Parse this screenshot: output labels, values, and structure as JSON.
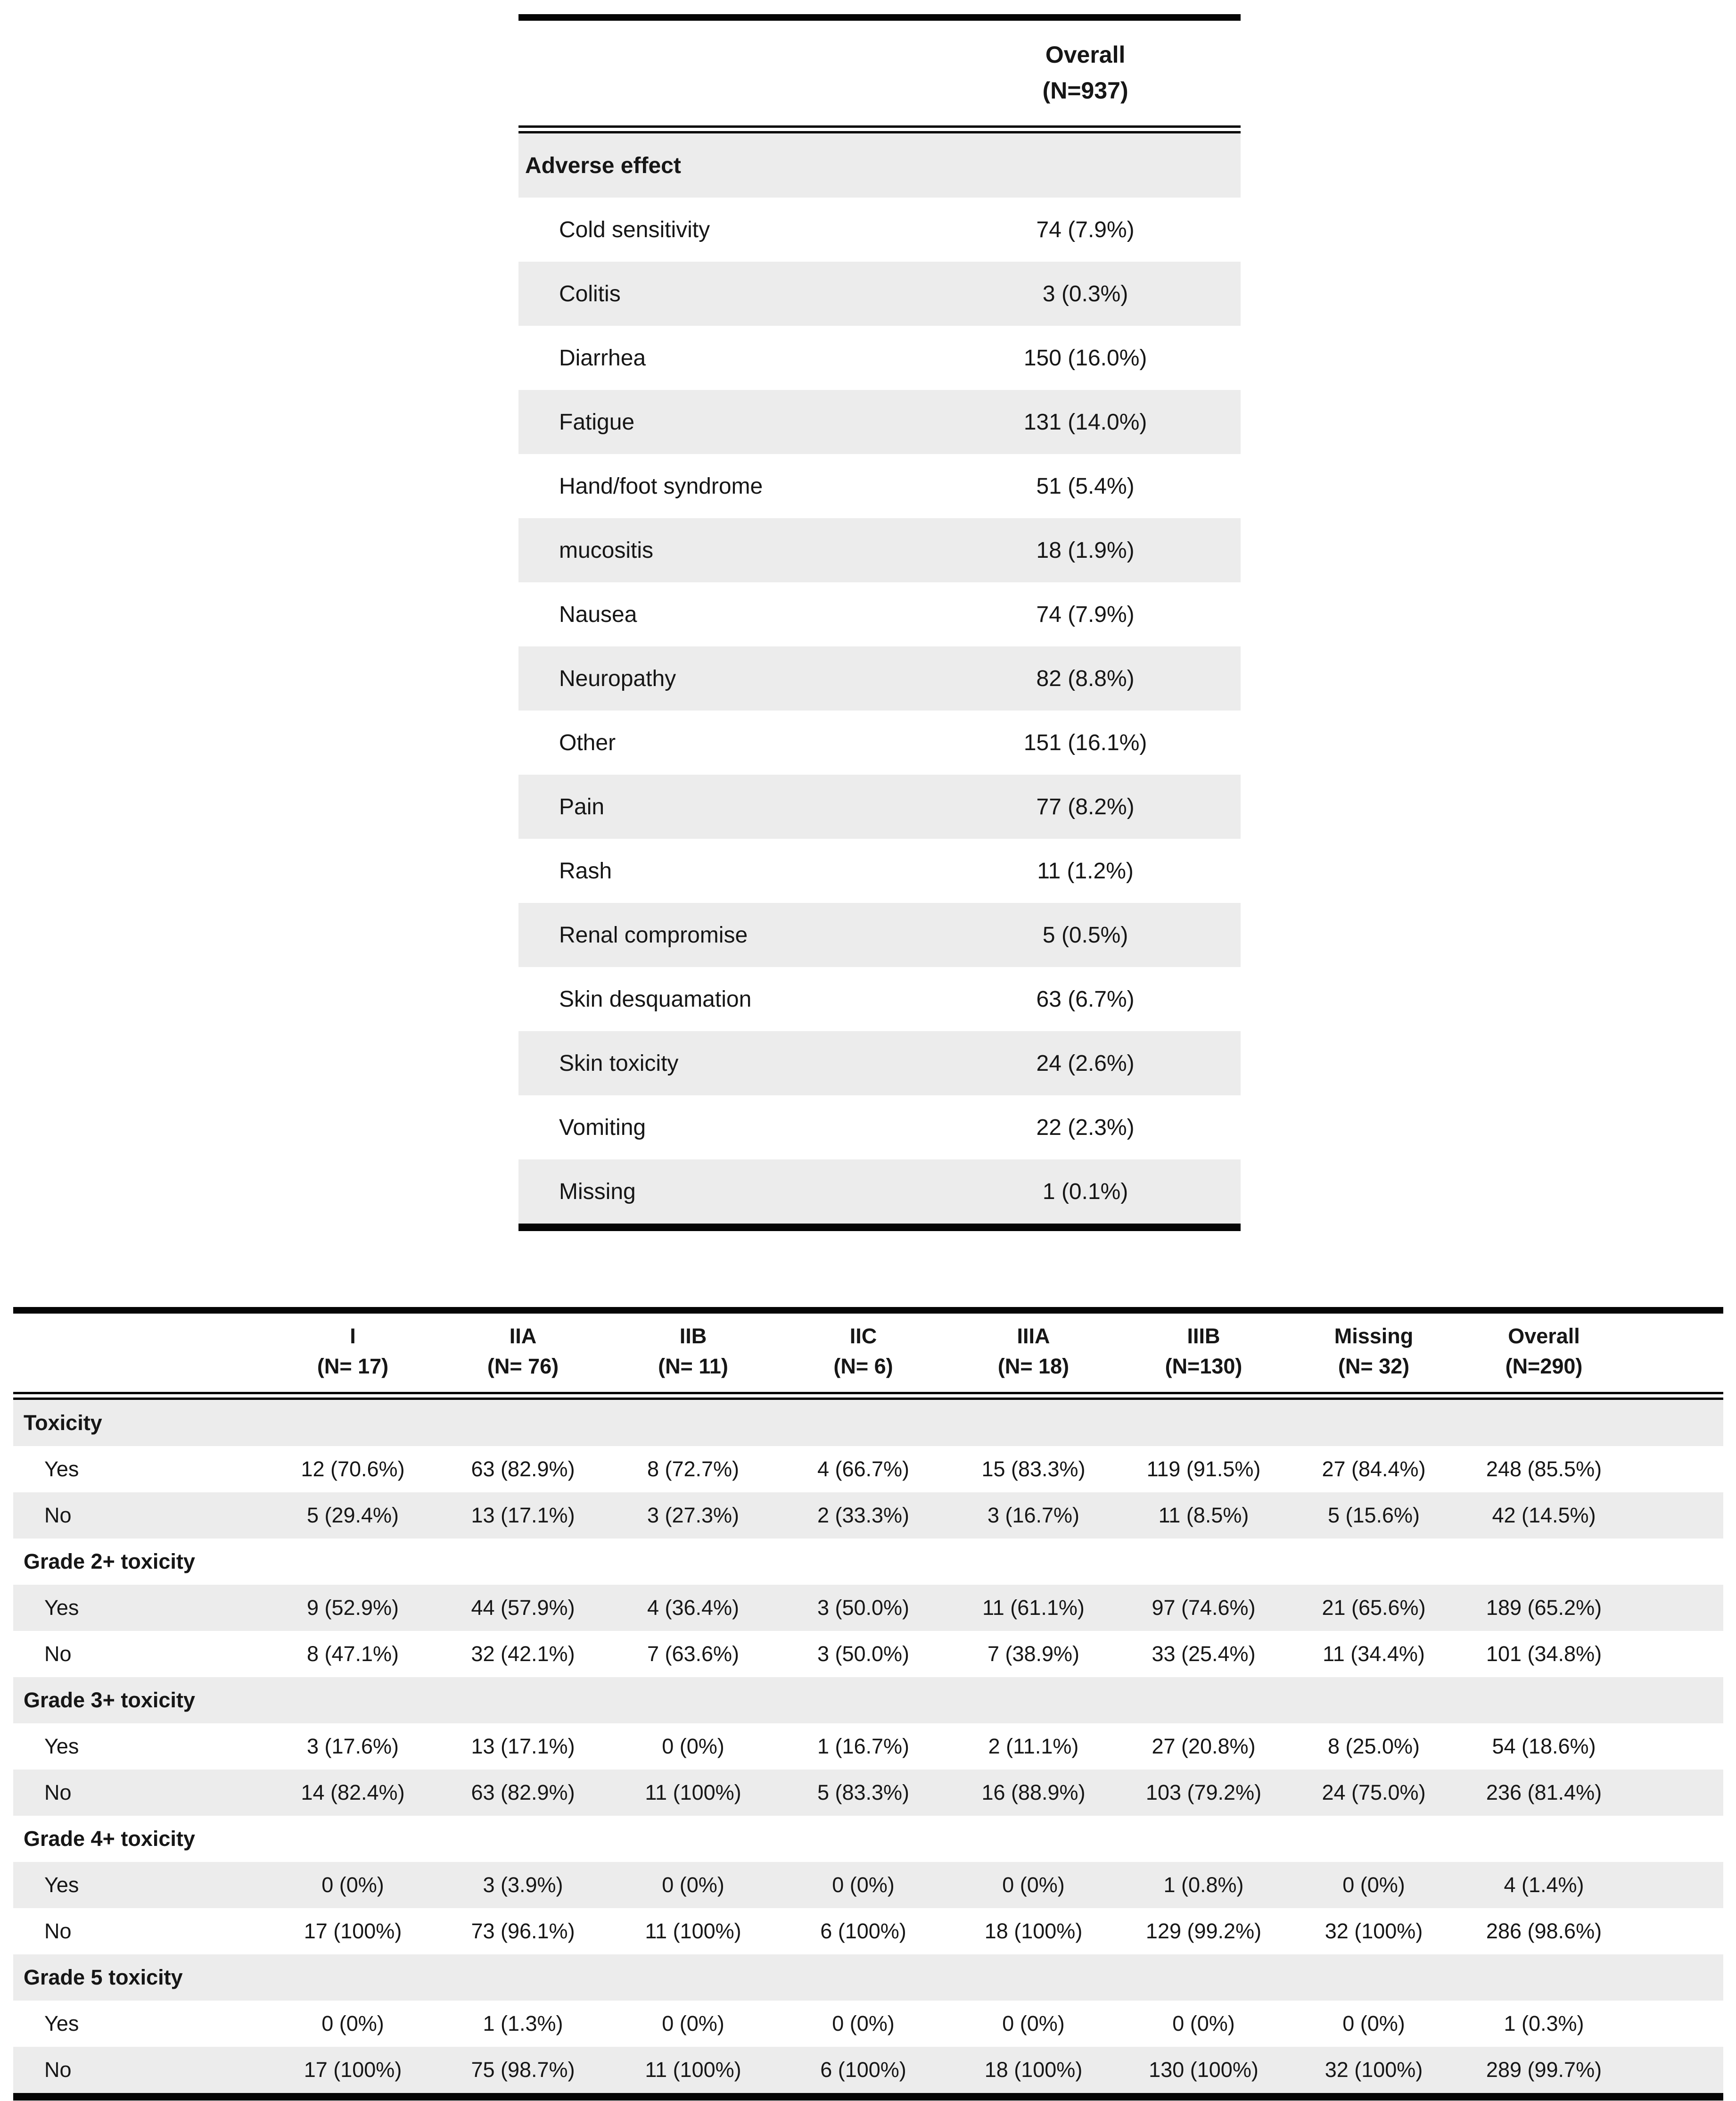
{
  "colors": {
    "background": "#ffffff",
    "stripe": "#ececec",
    "rule": "#050505",
    "text": "#161616"
  },
  "table1": {
    "header": {
      "line1": "Overall",
      "line2": "(N=937)"
    },
    "rows": [
      {
        "type": "section",
        "label": "Adverse effect"
      },
      {
        "type": "data",
        "label": "Cold sensitivity",
        "value": "74 (7.9%)"
      },
      {
        "type": "data",
        "label": "Colitis",
        "value": "3 (0.3%)"
      },
      {
        "type": "data",
        "label": "Diarrhea",
        "value": "150 (16.0%)"
      },
      {
        "type": "data",
        "label": "Fatigue",
        "value": "131 (14.0%)"
      },
      {
        "type": "data",
        "label": "Hand/foot syndrome",
        "value": "51 (5.4%)"
      },
      {
        "type": "data",
        "label": "mucositis",
        "value": "18 (1.9%)"
      },
      {
        "type": "data",
        "label": "Nausea",
        "value": "74 (7.9%)"
      },
      {
        "type": "data",
        "label": "Neuropathy",
        "value": "82 (8.8%)"
      },
      {
        "type": "data",
        "label": "Other",
        "value": "151 (16.1%)"
      },
      {
        "type": "data",
        "label": "Pain",
        "value": "77 (8.2%)"
      },
      {
        "type": "data",
        "label": "Rash",
        "value": "11 (1.2%)"
      },
      {
        "type": "data",
        "label": "Renal compromise",
        "value": "5 (0.5%)"
      },
      {
        "type": "data",
        "label": "Skin desquamation",
        "value": "63 (6.7%)"
      },
      {
        "type": "data",
        "label": "Skin toxicity",
        "value": "24 (2.6%)"
      },
      {
        "type": "data",
        "label": "Vomiting",
        "value": "22 (2.3%)"
      },
      {
        "type": "data",
        "label": "Missing",
        "value": "1 (0.1%)"
      }
    ]
  },
  "table2": {
    "columns": [
      {
        "line1": "I",
        "line2": "(N= 17)"
      },
      {
        "line1": "IIA",
        "line2": "(N= 76)"
      },
      {
        "line1": "IIB",
        "line2": "(N= 11)"
      },
      {
        "line1": "IIC",
        "line2": "(N= 6)"
      },
      {
        "line1": "IIIA",
        "line2": "(N= 18)"
      },
      {
        "line1": "IIIB",
        "line2": "(N=130)"
      },
      {
        "line1": "Missing",
        "line2": "(N= 32)"
      },
      {
        "line1": "Overall",
        "line2": "(N=290)"
      }
    ],
    "rows": [
      {
        "type": "section",
        "label": "Toxicity"
      },
      {
        "type": "data",
        "label": "Yes",
        "values": [
          "12 (70.6%)",
          "63 (82.9%)",
          "8 (72.7%)",
          "4 (66.7%)",
          "15 (83.3%)",
          "119 (91.5%)",
          "27 (84.4%)",
          "248 (85.5%)"
        ]
      },
      {
        "type": "data",
        "label": "No",
        "values": [
          "5 (29.4%)",
          "13 (17.1%)",
          "3 (27.3%)",
          "2 (33.3%)",
          "3 (16.7%)",
          "11 (8.5%)",
          "5 (15.6%)",
          "42 (14.5%)"
        ]
      },
      {
        "type": "section",
        "label": "Grade 2+ toxicity"
      },
      {
        "type": "data",
        "label": "Yes",
        "values": [
          "9 (52.9%)",
          "44 (57.9%)",
          "4 (36.4%)",
          "3 (50.0%)",
          "11 (61.1%)",
          "97 (74.6%)",
          "21 (65.6%)",
          "189 (65.2%)"
        ]
      },
      {
        "type": "data",
        "label": "No",
        "values": [
          "8 (47.1%)",
          "32 (42.1%)",
          "7 (63.6%)",
          "3 (50.0%)",
          "7 (38.9%)",
          "33 (25.4%)",
          "11 (34.4%)",
          "101 (34.8%)"
        ]
      },
      {
        "type": "section",
        "label": "Grade 3+ toxicity"
      },
      {
        "type": "data",
        "label": "Yes",
        "values": [
          "3 (17.6%)",
          "13 (17.1%)",
          "0 (0%)",
          "1 (16.7%)",
          "2 (11.1%)",
          "27 (20.8%)",
          "8 (25.0%)",
          "54 (18.6%)"
        ]
      },
      {
        "type": "data",
        "label": "No",
        "values": [
          "14 (82.4%)",
          "63 (82.9%)",
          "11 (100%)",
          "5 (83.3%)",
          "16 (88.9%)",
          "103 (79.2%)",
          "24 (75.0%)",
          "236 (81.4%)"
        ]
      },
      {
        "type": "section",
        "label": "Grade 4+ toxicity"
      },
      {
        "type": "data",
        "label": "Yes",
        "values": [
          "0 (0%)",
          "3 (3.9%)",
          "0 (0%)",
          "0 (0%)",
          "0 (0%)",
          "1 (0.8%)",
          "0 (0%)",
          "4 (1.4%)"
        ]
      },
      {
        "type": "data",
        "label": "No",
        "values": [
          "17 (100%)",
          "73 (96.1%)",
          "11 (100%)",
          "6 (100%)",
          "18 (100%)",
          "129 (99.2%)",
          "32 (100%)",
          "286 (98.6%)"
        ]
      },
      {
        "type": "section",
        "label": "Grade 5 toxicity"
      },
      {
        "type": "data",
        "label": "Yes",
        "values": [
          "0 (0%)",
          "1 (1.3%)",
          "0 (0%)",
          "0 (0%)",
          "0 (0%)",
          "0 (0%)",
          "0 (0%)",
          "1 (0.3%)"
        ]
      },
      {
        "type": "data",
        "label": "No",
        "values": [
          "17 (100%)",
          "75 (98.7%)",
          "11 (100%)",
          "6 (100%)",
          "18 (100%)",
          "130 (100%)",
          "32 (100%)",
          "289 (99.7%)"
        ]
      }
    ]
  }
}
